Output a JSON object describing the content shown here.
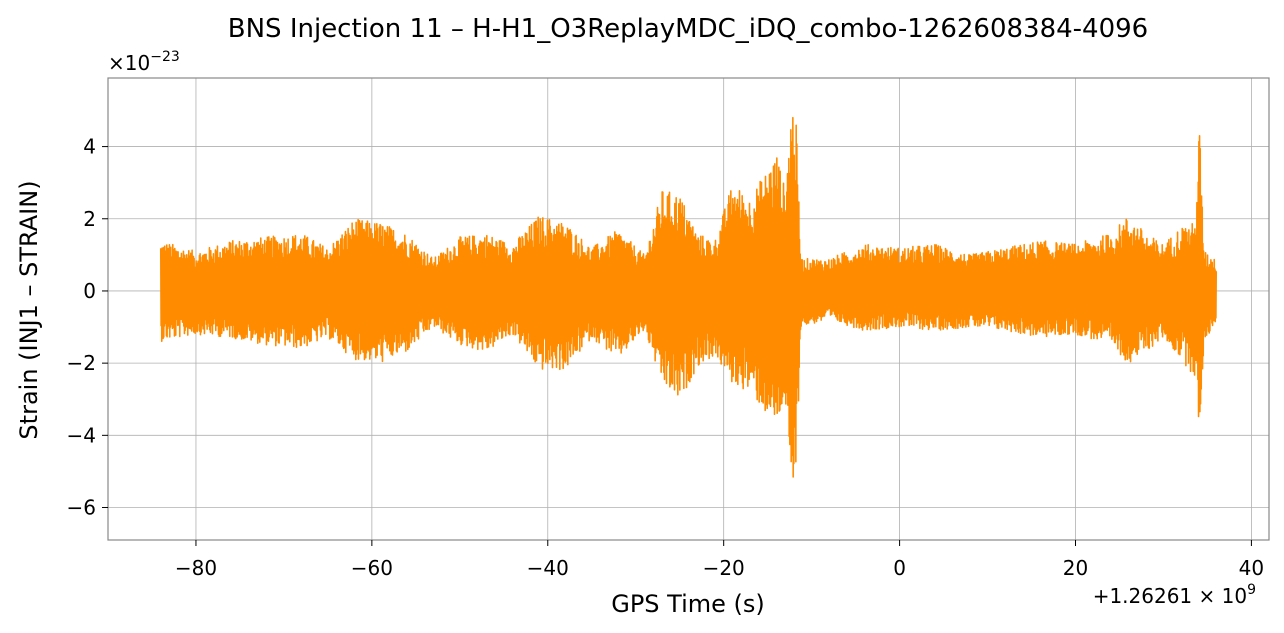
{
  "chart_data": {
    "type": "line",
    "title": "BNS Injection 11 – H-H1_O3ReplayMDC_iDQ_combo-1262608384-4096",
    "xlabel": "GPS Time (s)",
    "ylabel": "Strain (INJ1 – STRAIN)",
    "x_offset_label": "+1.26261 × 10",
    "x_offset_exponent": "9",
    "y_scale_label": "×10",
    "y_scale_exponent": "−23",
    "xlim": [
      -90,
      42
    ],
    "ylim": [
      -6.9,
      5.9
    ],
    "xticks": [
      {
        "value": -80,
        "label": "−80"
      },
      {
        "value": -60,
        "label": "−60"
      },
      {
        "value": -40,
        "label": "−40"
      },
      {
        "value": -20,
        "label": "−20"
      },
      {
        "value": 0,
        "label": "0"
      },
      {
        "value": 20,
        "label": "20"
      },
      {
        "value": 40,
        "label": "40"
      }
    ],
    "yticks": [
      {
        "value": -6,
        "label": "−6"
      },
      {
        "value": -4,
        "label": "−4"
      },
      {
        "value": -2,
        "label": "−2"
      },
      {
        "value": 0,
        "label": "0"
      },
      {
        "value": 2,
        "label": "2"
      },
      {
        "value": 4,
        "label": "4"
      }
    ],
    "grid": true,
    "series": [
      {
        "color": "#ff8c00",
        "x_range": [
          -84,
          36
        ],
        "envelope": [
          {
            "x": -84,
            "upper": 1.4,
            "lower": -1.4
          },
          {
            "x": -80,
            "upper": 1.1,
            "lower": -1.2
          },
          {
            "x": -76,
            "upper": 1.4,
            "lower": -1.3
          },
          {
            "x": -72,
            "upper": 1.5,
            "lower": -1.5
          },
          {
            "x": -68,
            "upper": 1.6,
            "lower": -1.6
          },
          {
            "x": -65,
            "upper": 1.2,
            "lower": -1.3
          },
          {
            "x": -62,
            "upper": 2.0,
            "lower": -1.9
          },
          {
            "x": -59,
            "upper": 1.9,
            "lower": -2.0
          },
          {
            "x": -56,
            "upper": 1.6,
            "lower": -1.7
          },
          {
            "x": -53,
            "upper": 0.9,
            "lower": -1.0
          },
          {
            "x": -50,
            "upper": 1.5,
            "lower": -1.5
          },
          {
            "x": -47,
            "upper": 1.6,
            "lower": -1.7
          },
          {
            "x": -44,
            "upper": 1.3,
            "lower": -1.2
          },
          {
            "x": -41,
            "upper": 2.1,
            "lower": -2.2
          },
          {
            "x": -38,
            "upper": 1.9,
            "lower": -2.2
          },
          {
            "x": -35,
            "upper": 1.2,
            "lower": -1.3
          },
          {
            "x": -32,
            "upper": 1.7,
            "lower": -1.9
          },
          {
            "x": -29,
            "upper": 1.0,
            "lower": -1.1
          },
          {
            "x": -27,
            "upper": 2.8,
            "lower": -2.6
          },
          {
            "x": -25,
            "upper": 2.7,
            "lower": -3.1
          },
          {
            "x": -23,
            "upper": 1.6,
            "lower": -2.1
          },
          {
            "x": -21,
            "upper": 1.4,
            "lower": -1.8
          },
          {
            "x": -19,
            "upper": 3.0,
            "lower": -2.6
          },
          {
            "x": -17,
            "upper": 2.6,
            "lower": -2.8
          },
          {
            "x": -15,
            "upper": 3.4,
            "lower": -3.5
          },
          {
            "x": -14,
            "upper": 3.9,
            "lower": -3.8
          },
          {
            "x": -13,
            "upper": 2.8,
            "lower": -3.0
          },
          {
            "x": -12.3,
            "upper": 5.3,
            "lower": -6.3
          },
          {
            "x": -11.8,
            "upper": 4.9,
            "lower": -5.2
          },
          {
            "x": -11.2,
            "upper": 0.9,
            "lower": -1.0
          },
          {
            "x": -8,
            "upper": 0.9,
            "lower": -0.8
          },
          {
            "x": -4,
            "upper": 1.3,
            "lower": -1.1
          },
          {
            "x": 0,
            "upper": 1.2,
            "lower": -1.0
          },
          {
            "x": 4,
            "upper": 1.3,
            "lower": -1.1
          },
          {
            "x": 8,
            "upper": 1.0,
            "lower": -1.0
          },
          {
            "x": 12,
            "upper": 1.2,
            "lower": -1.1
          },
          {
            "x": 16,
            "upper": 1.4,
            "lower": -1.3
          },
          {
            "x": 20,
            "upper": 1.3,
            "lower": -1.2
          },
          {
            "x": 24,
            "upper": 1.6,
            "lower": -1.5
          },
          {
            "x": 26,
            "upper": 2.1,
            "lower": -2.0
          },
          {
            "x": 28,
            "upper": 1.6,
            "lower": -1.7
          },
          {
            "x": 30,
            "upper": 1.3,
            "lower": -1.3
          },
          {
            "x": 32,
            "upper": 1.8,
            "lower": -1.9
          },
          {
            "x": 33.6,
            "upper": 1.9,
            "lower": -2.4
          },
          {
            "x": 34.1,
            "upper": 4.7,
            "lower": -4.2
          },
          {
            "x": 34.6,
            "upper": 1.1,
            "lower": -1.4
          },
          {
            "x": 36,
            "upper": 0.9,
            "lower": -0.9
          }
        ]
      }
    ]
  }
}
